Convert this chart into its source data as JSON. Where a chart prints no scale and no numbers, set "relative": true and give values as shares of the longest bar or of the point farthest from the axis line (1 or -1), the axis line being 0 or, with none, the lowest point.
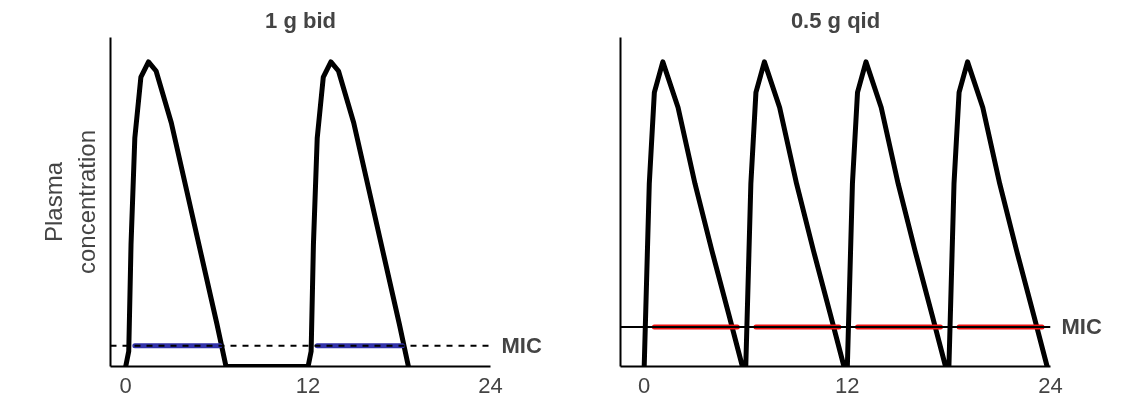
{
  "chart_data": [
    {
      "type": "line",
      "title": "1 g bid",
      "ylabel": "Plasma concentration",
      "relative": true,
      "xlim": [
        -1,
        24
      ],
      "xticks": [
        0,
        12,
        24
      ],
      "tick_labels": "x",
      "grid": false,
      "line_style": "solid",
      "series": [
        {
          "color": "#000000",
          "x": [
            0,
            0.2,
            0.35,
            0.6,
            1,
            1.5,
            2,
            3,
            4,
            5,
            6,
            6.6,
            12,
            12.2,
            12.35,
            12.6,
            13,
            13.5,
            14,
            15,
            16,
            17,
            18,
            18.6
          ],
          "values": [
            0,
            0.05,
            0.4,
            0.75,
            0.95,
            1,
            0.97,
            0.8,
            0.58,
            0.36,
            0.14,
            0,
            0,
            0.05,
            0.4,
            0.75,
            0.95,
            1,
            0.97,
            0.8,
            0.58,
            0.36,
            0.14,
            0
          ]
        },
        {
          "color": "#3333aa",
          "x": [
            0.6,
            6.2,
            null,
            12.6,
            18.2
          ],
          "values": [
            0.068,
            0.068,
            null,
            0.068,
            0.068
          ]
        }
      ],
      "ref_lines": [
        {
          "axis": "y",
          "value": 0.068,
          "label": "MIC",
          "color": "#000000",
          "line_style": "dashed"
        }
      ]
    },
    {
      "type": "line",
      "title": "0.5 g qid",
      "relative": true,
      "xlim": [
        -1.4,
        24
      ],
      "xticks": [
        0,
        12,
        24
      ],
      "tick_labels": "x",
      "grid": false,
      "line_style": "solid",
      "series": [
        {
          "color": "#000000",
          "x": [
            0,
            0.3,
            0.6,
            1.1,
            2,
            3,
            4,
            5,
            5.8,
            6,
            6.3,
            6.6,
            7.1,
            8,
            9,
            10,
            11,
            11.8,
            12,
            12.3,
            12.6,
            13.1,
            14,
            15,
            16,
            17,
            17.8,
            18,
            18.3,
            18.6,
            19.1,
            20,
            21,
            22,
            23,
            23.8
          ],
          "values": [
            0,
            0.6,
            0.9,
            1,
            0.85,
            0.6,
            0.38,
            0.17,
            0,
            0,
            0.6,
            0.9,
            1,
            0.85,
            0.6,
            0.38,
            0.17,
            0,
            0,
            0.6,
            0.9,
            1,
            0.85,
            0.6,
            0.38,
            0.17,
            0,
            0,
            0.6,
            0.9,
            1,
            0.85,
            0.6,
            0.38,
            0.17,
            0
          ]
        },
        {
          "color": "#ee1111",
          "x": [
            0.6,
            5.5,
            null,
            6.6,
            11.5,
            null,
            12.6,
            17.5,
            null,
            18.6,
            23.5
          ],
          "values": [
            0.13,
            0.13,
            null,
            0.13,
            0.13,
            null,
            0.13,
            0.13,
            null,
            0.13,
            0.13
          ]
        }
      ],
      "ref_lines": [
        {
          "axis": "y",
          "value": 0.13,
          "label": "MIC",
          "color": "#000000",
          "line_style": "solid"
        }
      ]
    }
  ]
}
